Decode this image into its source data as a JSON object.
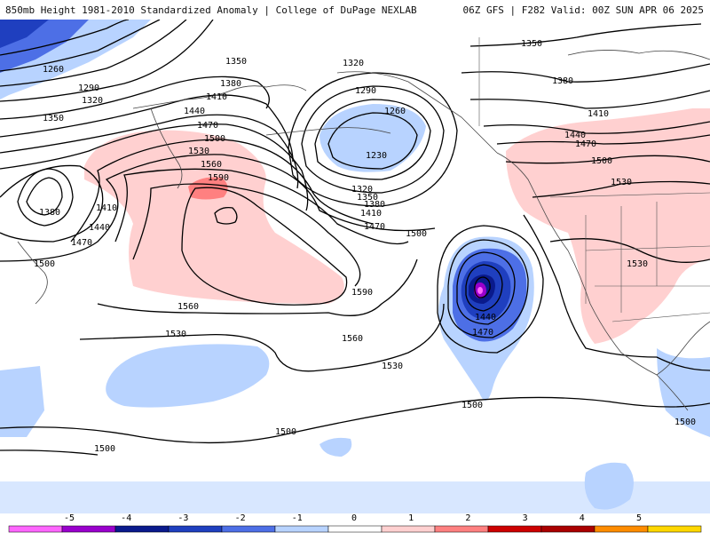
{
  "header": {
    "left": "850mb Height 1981-2010 Standardized Anomaly | College of DuPage NEXLAB",
    "right": "06Z GFS | F282 Valid: 00Z SUN APR 06 2025"
  },
  "contour_labels": [
    {
      "id": "c1260a",
      "text": "1260"
    },
    {
      "id": "c1290a",
      "text": "1290"
    },
    {
      "id": "c1320a",
      "text": "1320"
    },
    {
      "id": "c1350a",
      "text": "1350"
    },
    {
      "id": "c1350b",
      "text": "1350"
    },
    {
      "id": "c1380a",
      "text": "1380"
    },
    {
      "id": "c1410a",
      "text": "1410"
    },
    {
      "id": "c1440a",
      "text": "1440"
    },
    {
      "id": "c1470a",
      "text": "1470"
    },
    {
      "id": "c1500a",
      "text": "1500"
    },
    {
      "id": "c1530a",
      "text": "1530"
    },
    {
      "id": "c1560a",
      "text": "1560"
    },
    {
      "id": "c1590a",
      "text": "1590"
    },
    {
      "id": "c1320b",
      "text": "1320"
    },
    {
      "id": "c1290b",
      "text": "1290"
    },
    {
      "id": "c1260b",
      "text": "1260"
    },
    {
      "id": "c1230a",
      "text": "1230"
    },
    {
      "id": "c1320c",
      "text": "1320"
    },
    {
      "id": "c1350c",
      "text": "1350"
    },
    {
      "id": "c1380b",
      "text": "1380"
    },
    {
      "id": "c1410b",
      "text": "1410"
    },
    {
      "id": "c1470b",
      "text": "1470"
    },
    {
      "id": "c1380c",
      "text": "1380"
    },
    {
      "id": "c1410c",
      "text": "1410"
    },
    {
      "id": "c1440b",
      "text": "1440"
    },
    {
      "id": "c1470c",
      "text": "1470"
    },
    {
      "id": "c1500b",
      "text": "1500"
    },
    {
      "id": "c1500c",
      "text": "1500"
    },
    {
      "id": "c1560b",
      "text": "1560"
    },
    {
      "id": "c1530b",
      "text": "1530"
    },
    {
      "id": "c1590b",
      "text": "1590"
    },
    {
      "id": "c1560c",
      "text": "1560"
    },
    {
      "id": "c1530c",
      "text": "1530"
    },
    {
      "id": "c1440c",
      "text": "1440"
    },
    {
      "id": "c1470d",
      "text": "1470"
    },
    {
      "id": "c1500d",
      "text": "1500"
    },
    {
      "id": "c1500e",
      "text": "1500"
    },
    {
      "id": "c1500f",
      "text": "1500"
    },
    {
      "id": "c1350d",
      "text": "1350"
    },
    {
      "id": "c1380d",
      "text": "1380"
    },
    {
      "id": "c1410d",
      "text": "1410"
    },
    {
      "id": "c1440d",
      "text": "1440"
    },
    {
      "id": "c1470e",
      "text": "1470"
    },
    {
      "id": "c1500g",
      "text": "1500"
    },
    {
      "id": "c1530d",
      "text": "1530"
    },
    {
      "id": "c1530e",
      "text": "1530"
    },
    {
      "id": "c1500h",
      "text": "1500"
    }
  ],
  "colorbar": {
    "ticks": [
      "-5",
      "-4",
      "-3",
      "-2",
      "-1",
      "0",
      "1",
      "2",
      "3",
      "4",
      "5"
    ],
    "colors": [
      "#ff66ff",
      "#9900cc",
      "#0a1a8c",
      "#1f3fbf",
      "#4d6fe6",
      "#b8d3ff",
      "#ffffff",
      "#ffd0d0",
      "#ff8080",
      "#cc0000",
      "#aa0000",
      "#ff8c00",
      "#ffd700"
    ]
  }
}
